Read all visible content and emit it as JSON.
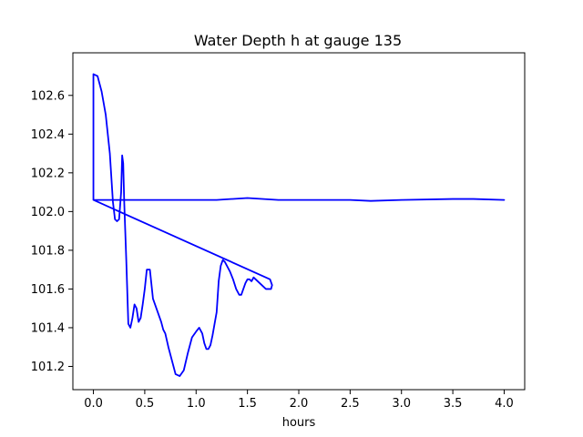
{
  "chart_data": {
    "type": "line",
    "title": "Water Depth h at gauge 135",
    "xlabel": "hours",
    "ylabel": "",
    "xlim": [
      -0.2,
      4.2
    ],
    "ylim": [
      101.08,
      102.82
    ],
    "grid": false,
    "line_color": "#0000ff",
    "xticks": [
      0.0,
      0.5,
      1.0,
      1.5,
      2.0,
      2.5,
      3.0,
      3.5,
      4.0
    ],
    "xtick_labels": [
      "0.0",
      "0.5",
      "1.0",
      "1.5",
      "2.0",
      "2.5",
      "3.0",
      "3.5",
      "4.0"
    ],
    "yticks": [
      101.2,
      101.4,
      101.6,
      101.8,
      102.0,
      102.2,
      102.4,
      102.6
    ],
    "ytick_labels": [
      "101.2",
      "101.4",
      "101.6",
      "101.8",
      "102.0",
      "102.2",
      "102.4",
      "102.6"
    ],
    "series": [
      {
        "x": [
          0.0,
          0.0,
          0.04,
          0.08,
          0.12,
          0.16,
          0.19,
          0.21,
          0.23,
          0.25,
          0.27,
          0.28,
          0.29,
          0.3,
          0.31,
          0.32,
          0.34,
          0.36,
          0.38,
          0.4,
          0.42,
          0.44,
          0.46,
          0.48,
          0.5,
          0.52,
          0.55,
          0.58,
          0.6,
          0.62,
          0.64,
          0.66,
          0.68,
          0.7,
          0.73,
          0.77,
          0.8,
          0.84,
          0.88,
          0.92,
          0.96,
          1.0,
          1.03,
          1.06,
          1.08,
          1.1,
          1.12,
          1.14,
          1.16,
          1.18,
          1.2,
          1.21,
          1.22,
          1.24,
          1.26,
          1.28,
          1.3,
          1.33,
          1.36,
          1.39,
          1.42,
          1.44,
          1.46,
          1.48,
          1.5,
          1.52,
          1.54,
          1.56,
          1.58,
          1.6,
          1.62,
          1.64,
          1.66,
          1.68,
          1.7,
          1.72,
          1.73,
          1.74,
          1.72,
          0.0,
          0.2,
          0.5,
          1.0,
          1.2,
          1.5,
          1.8,
          2.0,
          2.5,
          2.7,
          3.0,
          3.5,
          3.7,
          4.0
        ],
        "y": [
          102.06,
          102.71,
          102.7,
          102.62,
          102.5,
          102.3,
          102.05,
          101.96,
          101.95,
          101.96,
          102.1,
          102.29,
          102.25,
          102.05,
          101.9,
          101.75,
          101.42,
          101.4,
          101.45,
          101.52,
          101.5,
          101.43,
          101.45,
          101.52,
          101.6,
          101.7,
          101.7,
          101.55,
          101.52,
          101.49,
          101.46,
          101.43,
          101.39,
          101.37,
          101.3,
          101.22,
          101.16,
          101.15,
          101.18,
          101.27,
          101.35,
          101.38,
          101.4,
          101.37,
          101.32,
          101.29,
          101.29,
          101.31,
          101.36,
          101.42,
          101.48,
          101.56,
          101.64,
          101.72,
          101.75,
          101.74,
          101.72,
          101.69,
          101.65,
          101.6,
          101.57,
          101.57,
          101.6,
          101.63,
          101.65,
          101.65,
          101.64,
          101.66,
          101.65,
          101.64,
          101.63,
          101.62,
          101.61,
          101.6,
          101.6,
          101.6,
          101.6,
          101.62,
          101.65,
          102.06,
          102.06,
          102.06,
          102.06,
          102.06,
          102.07,
          102.06,
          102.06,
          102.06,
          102.055,
          102.06,
          102.065,
          102.065,
          102.06
        ]
      }
    ]
  }
}
